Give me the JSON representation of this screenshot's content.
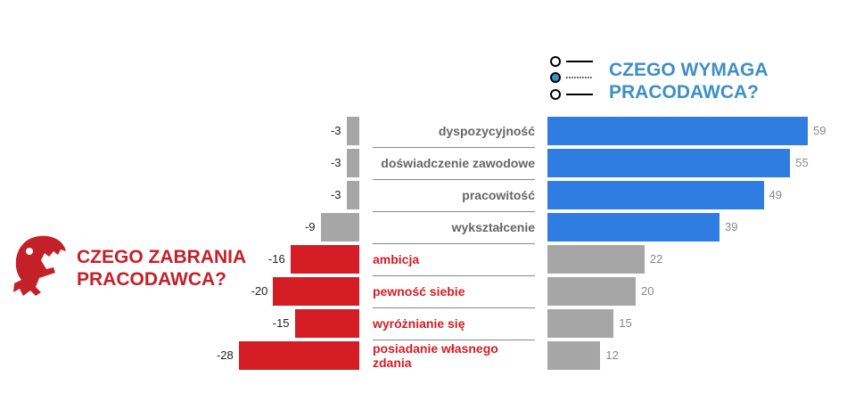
{
  "chart_data": {
    "type": "bar",
    "orientation": "horizontal-diverging",
    "title_right": "CZEGO WYMAGA PRACODAWCA?",
    "title_left": "CZEGO ZABRANIA PRACODAWCA?",
    "categories": [
      "dyspozycyjność",
      "doświadczenie zawodowe",
      "pracowitość",
      "wykształcenie",
      "ambicja",
      "pewność siebie",
      "wyróżnianie się",
      "posiadanie własnego zdania"
    ],
    "series": [
      {
        "name": "zabrania",
        "values": [
          -3,
          -3,
          -3,
          -9,
          -16,
          -20,
          -15,
          -28
        ]
      },
      {
        "name": "wymaga",
        "values": [
          59,
          55,
          49,
          39,
          22,
          20,
          15,
          12
        ]
      }
    ],
    "colors": {
      "blue": "#2f7de1",
      "red": "#d41c24",
      "gray": "#a6a6a6",
      "title_blue": "#3d8fc6",
      "label_gray": "#666666"
    }
  },
  "titles": {
    "right_line1": "CZEGO WYMAGA",
    "right_line2": "PRACODAWCA?",
    "left_line1": "CZEGO ZABRANIA",
    "left_line2": "PRACODAWCA?"
  }
}
